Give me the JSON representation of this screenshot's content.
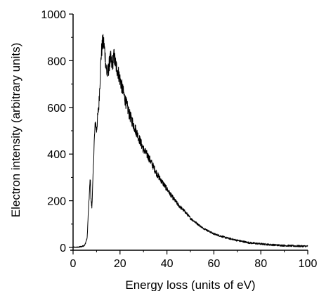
{
  "chart_data": {
    "type": "line",
    "title": "",
    "xlabel": "Energy loss (units of eV)",
    "ylabel": "Electron intensity (arbitrary units)",
    "xlim": [
      0,
      100
    ],
    "ylim": [
      0,
      1000
    ],
    "x_ticks": [
      0,
      20,
      40,
      60,
      80,
      100
    ],
    "y_ticks": [
      0,
      200,
      400,
      600,
      800,
      1000
    ],
    "x_tick_labels": [
      "0",
      "20",
      "40",
      "60",
      "80",
      "100"
    ],
    "y_tick_labels": [
      "0",
      "200",
      "400",
      "600",
      "800",
      "1000"
    ],
    "grid": false,
    "legend": "none",
    "line_color": "#000000",
    "series": [
      {
        "x": [
          0,
          2,
          4,
          5,
          6,
          6.5,
          7,
          7.3,
          7.6,
          8,
          8.5,
          9,
          9.5,
          10,
          10.5,
          11,
          11.5,
          12,
          12.5,
          13,
          13.5,
          14,
          14.5,
          15,
          15.5,
          16,
          16.5,
          17,
          17.5,
          18,
          18.5,
          19,
          20,
          21,
          22,
          24,
          26,
          28,
          30,
          32,
          34,
          36,
          38,
          40,
          42,
          45,
          48,
          50,
          55,
          60,
          65,
          70,
          75,
          80,
          85,
          90,
          95,
          100
        ],
        "y": [
          0,
          0,
          5,
          10,
          40,
          150,
          240,
          300,
          210,
          170,
          300,
          450,
          540,
          500,
          560,
          610,
          720,
          830,
          870,
          880,
          840,
          780,
          740,
          760,
          790,
          810,
          780,
          800,
          820,
          790,
          770,
          760,
          720,
          680,
          640,
          570,
          520,
          470,
          420,
          390,
          350,
          310,
          280,
          250,
          220,
          180,
          150,
          125,
          85,
          58,
          42,
          30,
          20,
          15,
          11,
          8,
          6,
          5
        ]
      }
    ]
  }
}
